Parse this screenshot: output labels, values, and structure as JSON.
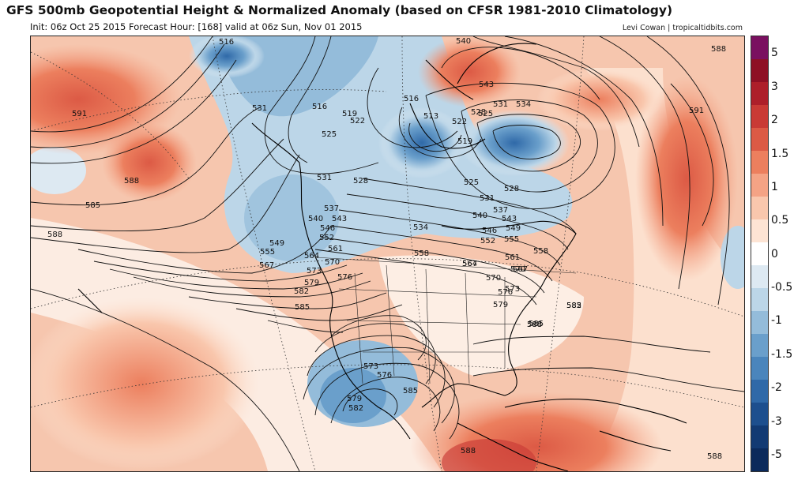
{
  "header": {
    "title": "GFS 500mb Geopotential Height & Normalized Anomaly (based on CFSR 1981-2010 Climatology)",
    "subtitle": "Init: 06z Oct 25 2015   Forecast Hour: [168]   valid at 06z Sun, Nov 01 2015",
    "credit": "Levi Cowan | tropicaltidbits.com"
  },
  "colorbar": {
    "ticks": [
      "5",
      "3",
      "2",
      "1.5",
      "1",
      "0.5",
      "0",
      "-0.5",
      "-1",
      "-1.5",
      "-2",
      "-3",
      "-5"
    ],
    "colors": [
      "#7a1060",
      "#8e1024",
      "#ad1f2a",
      "#c93a35",
      "#dc5a45",
      "#ec7f5e",
      "#f4a385",
      "#f9c7ad",
      "#fde4d4",
      "#ffffff",
      "#dde9f2",
      "#bcd6e8",
      "#94bcda",
      "#6a9fcb",
      "#4a85bc",
      "#2f69a8",
      "#1d4f8e",
      "#123a73",
      "#0b2a5b"
    ]
  },
  "contour_labels": [
    "516",
    "531",
    "516",
    "519",
    "522",
    "525",
    "513",
    "516",
    "519",
    "522",
    "525",
    "528",
    "531",
    "534",
    "540",
    "543",
    "591",
    "588",
    "585",
    "588",
    "591",
    "588",
    "531",
    "528",
    "537",
    "540",
    "543",
    "546",
    "549",
    "552",
    "555",
    "558",
    "561",
    "564",
    "567",
    "570",
    "573",
    "576",
    "579",
    "582",
    "585",
    "525",
    "528",
    "531",
    "534",
    "537",
    "540",
    "543",
    "546",
    "549",
    "552",
    "555",
    "558",
    "561",
    "564",
    "567",
    "570",
    "573",
    "576",
    "579",
    "582",
    "585",
    "588",
    "573",
    "576",
    "579",
    "582",
    "585",
    "588",
    "567",
    "570",
    "585",
    "588",
    "588"
  ],
  "legend_colors": {
    "positive_strong": "#dc5a45",
    "positive_weak": "#f4cbb6",
    "neutral": "#ffffff",
    "negative_weak": "#bcd6e8",
    "negative_strong": "#2f69a8"
  }
}
